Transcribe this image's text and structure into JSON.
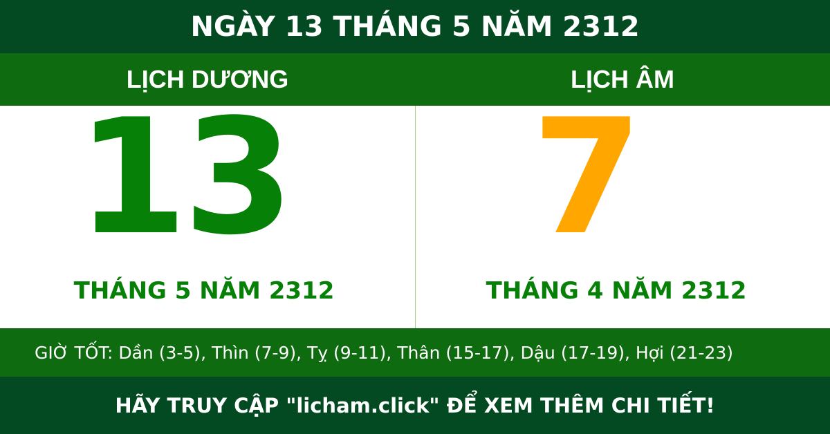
{
  "title": "NGÀY 13 THÁNG 5 NĂM 2312",
  "solar": {
    "heading": "LỊCH DƯƠNG",
    "day": "13",
    "month_year": "THÁNG 5 NĂM 2312"
  },
  "lunar": {
    "heading": "LỊCH ÂM",
    "day": "7",
    "month_year": "THÁNG 4 NĂM 2312"
  },
  "good_hours": "GIỜ TỐT: Dần (3-5), Thìn (7-9), Tỵ (9-11), Thân (15-17), Dậu (17-19), Hợi (21-23)",
  "footer": "HÃY TRUY CẬP \"licham.click\" ĐỂ XEM THÊM CHI TIẾT!",
  "colors": {
    "dark_green": "#034a22",
    "green": "#0f6b10",
    "solar_number": "#078007",
    "lunar_number": "#ffa600"
  }
}
